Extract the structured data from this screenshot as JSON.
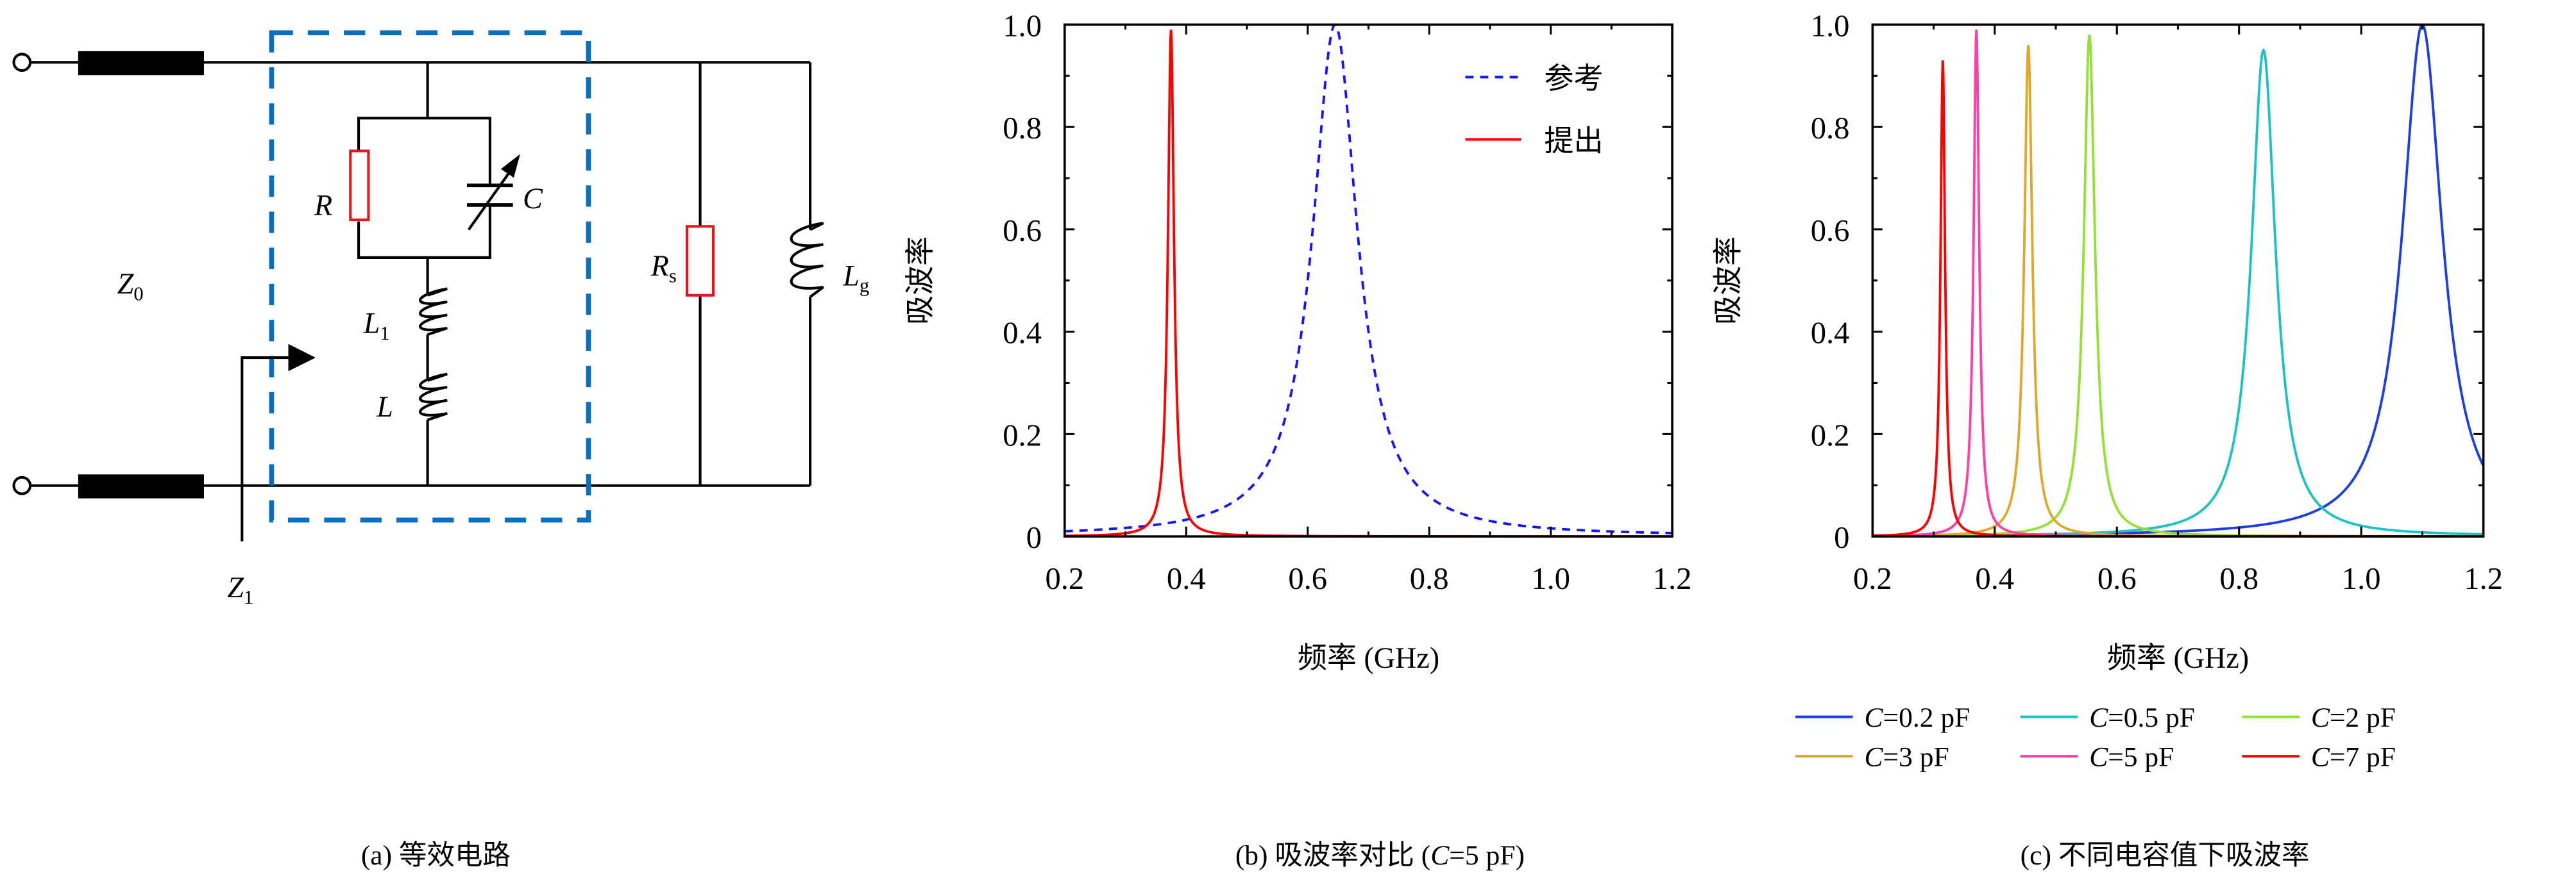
{
  "circuit": {
    "caption": "(a) 等效电路",
    "labels": {
      "R": "R",
      "C": "C",
      "L1": "L",
      "L1_sub": "1",
      "L": "L",
      "Rs": "R",
      "Rs_sub": "s",
      "Lg": "L",
      "Lg_sub": "g",
      "Z0": "Z",
      "Z0_sub": "0",
      "Z1": "Z",
      "Z1_sub": "1"
    },
    "colors": {
      "box": "#0a6fc2",
      "resistor": "#e8141c",
      "wire": "#000000"
    }
  },
  "chart_data": [
    {
      "type": "line",
      "title": "(b) 吸波率对比 (C=5 pF)",
      "caption_prefix": "(b) 吸波率对比 (",
      "caption_var": "C",
      "caption_suffix": "=5 pF)",
      "xlabel": "频率 (GHz)",
      "ylabel": "吸波率",
      "xlim": [
        0.2,
        1.2
      ],
      "ylim": [
        0,
        1.0
      ],
      "xticks": [
        "0.2",
        "0.4",
        "0.6",
        "0.8",
        "1.0",
        "1.2"
      ],
      "yticks": [
        "0",
        "0.2",
        "0.4",
        "0.6",
        "0.8",
        "1.0"
      ],
      "legend_position": "top-right",
      "series": [
        {
          "name": "参考",
          "style": "dashed",
          "color": "#1414ff",
          "peak_freq": 0.645,
          "peak_value": 1.0,
          "half_width": 0.045
        },
        {
          "name": "提出",
          "style": "solid",
          "color": "#ff0000",
          "peak_freq": 0.375,
          "peak_value": 0.99,
          "half_width": 0.006
        }
      ]
    },
    {
      "type": "line",
      "title": "(c) 不同电容值下吸波率",
      "xlabel": "频率 (GHz)",
      "ylabel": "吸波率",
      "xlim": [
        0.2,
        1.2
      ],
      "ylim": [
        0,
        1.0
      ],
      "xticks": [
        "0.2",
        "0.4",
        "0.6",
        "0.8",
        "1.0",
        "1.2"
      ],
      "yticks": [
        "0",
        "0.2",
        "0.4",
        "0.6",
        "0.8",
        "1.0"
      ],
      "legend_position": "bottom",
      "series": [
        {
          "name": "C=0.2 pF",
          "var": "C",
          "rest": "=0.2 pF",
          "color": "#1c3ee6",
          "peak_freq": 1.1,
          "peak_value": 1.0,
          "half_width": 0.04
        },
        {
          "name": "C=0.5 pF",
          "var": "C",
          "rest": "=0.5 pF",
          "color": "#1ec2c4",
          "peak_freq": 0.84,
          "peak_value": 0.95,
          "half_width": 0.024
        },
        {
          "name": "C=2 pF",
          "var": "C",
          "rest": "=2 pF",
          "color": "#94e034",
          "peak_freq": 0.555,
          "peak_value": 0.98,
          "half_width": 0.011
        },
        {
          "name": "C=3 pF",
          "var": "C",
          "rest": "=3 pF",
          "color": "#e2a62a",
          "peak_freq": 0.455,
          "peak_value": 0.96,
          "half_width": 0.008
        },
        {
          "name": "C=5 pF",
          "var": "C",
          "rest": "=5 pF",
          "color": "#ff3ea8",
          "peak_freq": 0.37,
          "peak_value": 0.99,
          "half_width": 0.0055
        },
        {
          "name": "C=7 pF",
          "var": "C",
          "rest": "=7 pF",
          "color": "#ff0000",
          "peak_freq": 0.315,
          "peak_value": 0.93,
          "half_width": 0.0045
        }
      ]
    }
  ]
}
